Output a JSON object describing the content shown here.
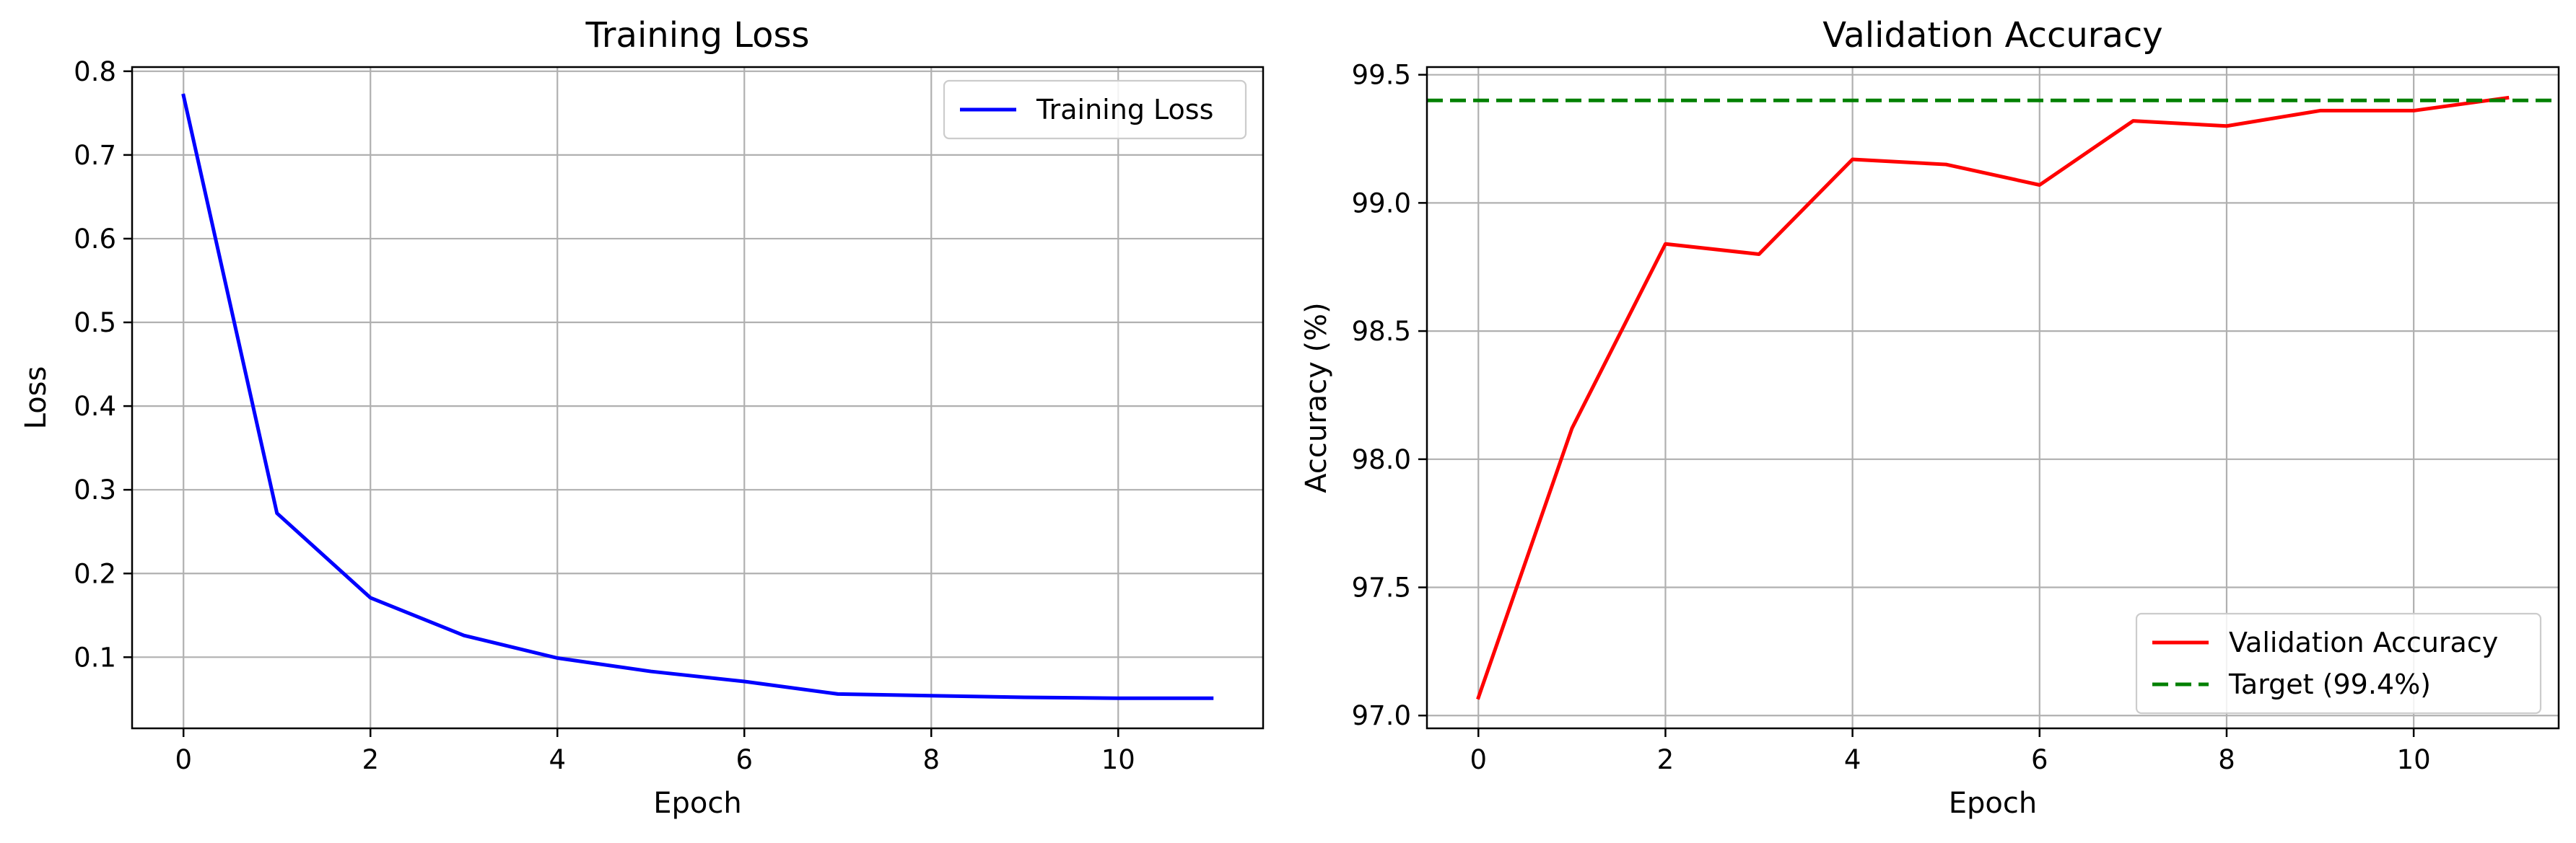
{
  "chart_data": [
    {
      "type": "line",
      "title": "Training Loss",
      "xlabel": "Epoch",
      "ylabel": "Loss",
      "xlim": [
        -0.55,
        11.55
      ],
      "ylim": [
        0.015,
        0.805
      ],
      "xticks": [
        0,
        2,
        4,
        6,
        8,
        10
      ],
      "yticks": [
        0.1,
        0.2,
        0.3,
        0.4,
        0.5,
        0.6,
        0.7,
        0.8
      ],
      "yticks_decimals": 1,
      "grid": true,
      "legend": "upper right",
      "series": [
        {
          "name": "Training Loss",
          "color": "#0000ff",
          "linestyle": "solid",
          "x": [
            0,
            1,
            2,
            3,
            4,
            5,
            6,
            7,
            8,
            9,
            10,
            11
          ],
          "y": [
            0.771,
            0.272,
            0.171,
            0.126,
            0.099,
            0.083,
            0.071,
            0.056,
            0.054,
            0.052,
            0.051,
            0.051
          ]
        }
      ]
    },
    {
      "type": "line",
      "title": "Validation Accuracy",
      "xlabel": "Epoch",
      "ylabel": "Accuracy (%)",
      "xlim": [
        -0.55,
        11.55
      ],
      "ylim": [
        96.95,
        99.53
      ],
      "xticks": [
        0,
        2,
        4,
        6,
        8,
        10
      ],
      "yticks": [
        97.0,
        97.5,
        98.0,
        98.5,
        99.0,
        99.5
      ],
      "yticks_decimals": 1,
      "grid": true,
      "legend": "lower right",
      "series": [
        {
          "name": "Validation Accuracy",
          "color": "#ff0000",
          "linestyle": "solid",
          "x": [
            0,
            1,
            2,
            3,
            4,
            5,
            6,
            7,
            8,
            9,
            10,
            11
          ],
          "y": [
            97.07,
            98.12,
            98.84,
            98.8,
            99.17,
            99.15,
            99.07,
            99.32,
            99.3,
            99.36,
            99.36,
            99.41
          ]
        },
        {
          "name": "Target (99.4%)",
          "color": "#008000",
          "linestyle": "dashed",
          "hline": 99.4
        }
      ]
    }
  ]
}
